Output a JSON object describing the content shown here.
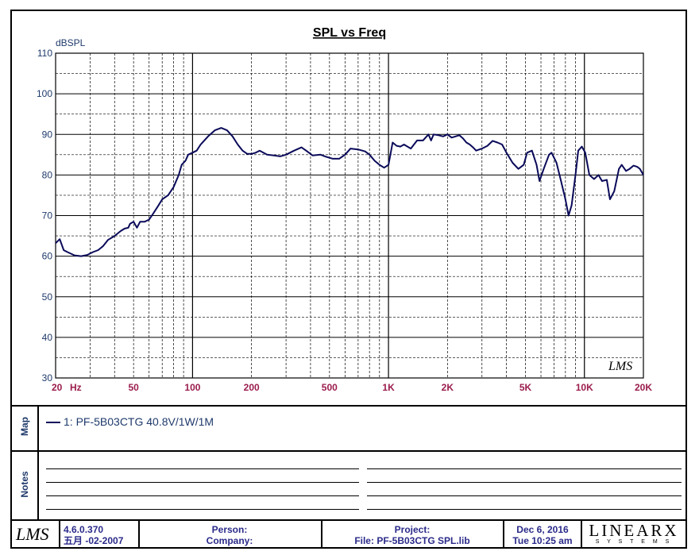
{
  "chart_data": {
    "type": "line",
    "title": "SPL vs Freq",
    "ylabel": "dBSPL",
    "xlabel": "Hz",
    "x_scale": "log",
    "xlim": [
      20,
      20000
    ],
    "ylim": [
      30,
      110
    ],
    "grid": true,
    "y_ticks": [
      "30",
      "40",
      "50",
      "60",
      "70",
      "80",
      "90",
      "100",
      "110"
    ],
    "x_ticks": [
      {
        "value": 20,
        "label": "20"
      },
      {
        "value": 50,
        "label": "50"
      },
      {
        "value": 100,
        "label": "100"
      },
      {
        "value": 200,
        "label": "200"
      },
      {
        "value": 500,
        "label": "500"
      },
      {
        "value": 1000,
        "label": "1K"
      },
      {
        "value": 2000,
        "label": "2K"
      },
      {
        "value": 5000,
        "label": "5K"
      },
      {
        "value": 10000,
        "label": "10K"
      },
      {
        "value": 20000,
        "label": "20K"
      }
    ],
    "watermark": "LMS",
    "series": [
      {
        "name": "1: PF-5B03CTG 40.8V/1W/1M",
        "color": "#0a0a5a",
        "points": [
          [
            20,
            63.2
          ],
          [
            21,
            64.2
          ],
          [
            22,
            61.5
          ],
          [
            23,
            61.0
          ],
          [
            25,
            60.2
          ],
          [
            27,
            60.0
          ],
          [
            29,
            60.3
          ],
          [
            31,
            61.0
          ],
          [
            33,
            61.5
          ],
          [
            35,
            62.5
          ],
          [
            37,
            64.0
          ],
          [
            40,
            65.0
          ],
          [
            43,
            66.2
          ],
          [
            45,
            66.8
          ],
          [
            47,
            67.0
          ],
          [
            48,
            68.0
          ],
          [
            50,
            68.5
          ],
          [
            52,
            67.0
          ],
          [
            54,
            68.5
          ],
          [
            57,
            68.5
          ],
          [
            60,
            69.0
          ],
          [
            63,
            70.5
          ],
          [
            67,
            72.5
          ],
          [
            70,
            74.0
          ],
          [
            75,
            75.0
          ],
          [
            80,
            77.0
          ],
          [
            85,
            80.0
          ],
          [
            88,
            82.5
          ],
          [
            92,
            83.5
          ],
          [
            95,
            85.0
          ],
          [
            100,
            85.5
          ],
          [
            105,
            86.0
          ],
          [
            110,
            87.5
          ],
          [
            120,
            89.5
          ],
          [
            130,
            91.0
          ],
          [
            140,
            91.6
          ],
          [
            150,
            91.0
          ],
          [
            160,
            89.5
          ],
          [
            170,
            87.5
          ],
          [
            180,
            86.0
          ],
          [
            190,
            85.2
          ],
          [
            200,
            85.2
          ],
          [
            210,
            85.5
          ],
          [
            220,
            86.0
          ],
          [
            240,
            85.0
          ],
          [
            260,
            84.8
          ],
          [
            280,
            84.6
          ],
          [
            300,
            85.0
          ],
          [
            330,
            86.0
          ],
          [
            360,
            86.8
          ],
          [
            380,
            86.0
          ],
          [
            410,
            84.8
          ],
          [
            450,
            85.0
          ],
          [
            480,
            84.5
          ],
          [
            520,
            84.0
          ],
          [
            560,
            84.0
          ],
          [
            600,
            85.0
          ],
          [
            640,
            86.5
          ],
          [
            700,
            86.3
          ],
          [
            760,
            85.8
          ],
          [
            800,
            85.0
          ],
          [
            850,
            83.5
          ],
          [
            900,
            82.5
          ],
          [
            950,
            81.8
          ],
          [
            1000,
            82.5
          ],
          [
            1050,
            88.0
          ],
          [
            1100,
            87.2
          ],
          [
            1150,
            87.0
          ],
          [
            1200,
            87.5
          ],
          [
            1250,
            87.0
          ],
          [
            1300,
            86.5
          ],
          [
            1400,
            88.5
          ],
          [
            1500,
            88.5
          ],
          [
            1600,
            90.0
          ],
          [
            1650,
            88.5
          ],
          [
            1700,
            90.0
          ],
          [
            1800,
            89.8
          ],
          [
            1900,
            89.5
          ],
          [
            2000,
            90.0
          ],
          [
            2100,
            89.2
          ],
          [
            2200,
            89.5
          ],
          [
            2300,
            89.8
          ],
          [
            2400,
            89.0
          ],
          [
            2500,
            88.0
          ],
          [
            2600,
            87.5
          ],
          [
            2700,
            86.8
          ],
          [
            2800,
            86.0
          ],
          [
            3000,
            86.5
          ],
          [
            3200,
            87.2
          ],
          [
            3400,
            88.4
          ],
          [
            3600,
            88.0
          ],
          [
            3800,
            87.5
          ],
          [
            4000,
            85.5
          ],
          [
            4300,
            83.0
          ],
          [
            4600,
            81.5
          ],
          [
            4900,
            82.5
          ],
          [
            5100,
            85.5
          ],
          [
            5400,
            86.0
          ],
          [
            5700,
            82.5
          ],
          [
            5900,
            78.5
          ],
          [
            6200,
            81.5
          ],
          [
            6600,
            85.0
          ],
          [
            6800,
            85.5
          ],
          [
            7200,
            83.0
          ],
          [
            7600,
            78.5
          ],
          [
            8000,
            74.0
          ],
          [
            8300,
            70.0
          ],
          [
            8600,
            72.5
          ],
          [
            9000,
            80.0
          ],
          [
            9300,
            86.0
          ],
          [
            9700,
            87.0
          ],
          [
            10100,
            85.5
          ],
          [
            10600,
            80.0
          ],
          [
            11200,
            79.0
          ],
          [
            11800,
            80.0
          ],
          [
            12300,
            78.5
          ],
          [
            13000,
            78.8
          ],
          [
            13500,
            74.0
          ],
          [
            14200,
            76.0
          ],
          [
            15000,
            81.5
          ],
          [
            15500,
            82.5
          ],
          [
            16300,
            81.0
          ],
          [
            17000,
            81.5
          ],
          [
            17800,
            82.3
          ],
          [
            18600,
            82.0
          ],
          [
            19200,
            81.5
          ],
          [
            20000,
            80.0
          ]
        ]
      }
    ]
  },
  "map": {
    "label": "Map",
    "legend_entry": "1: PF-5B03CTG 40.8V/1W/1M"
  },
  "notes": {
    "label": "Notes"
  },
  "footer": {
    "logo": "LMS",
    "version": "4.6.0.370",
    "build_date": "五月 -02-2007",
    "person_label": "Person:",
    "company_label": "Company:",
    "project_label": "Project:",
    "file_label": "File: PF-5B03CTG SPL.lib",
    "date": "Dec  6, 2016",
    "time": "Tue 10:25 am",
    "brand": "LINEARX",
    "brand_sub": "S Y S T E M S"
  },
  "colors": {
    "axis_label": "#1f3a6b",
    "x_tick_label": "#9b1c4c",
    "curve": "#0a0a5a",
    "footer_text": "#2a2a8a"
  }
}
